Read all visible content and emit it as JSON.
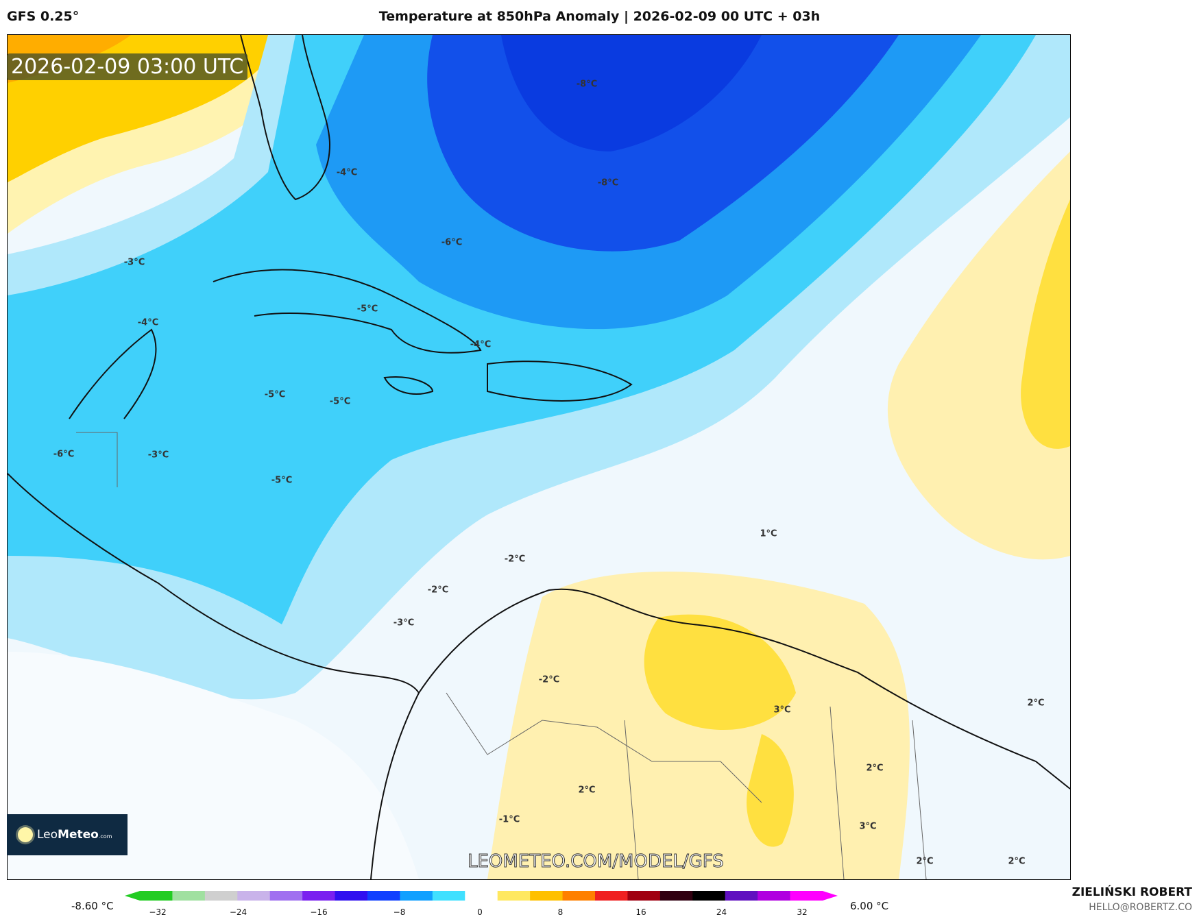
{
  "header": {
    "model": "GFS 0.25°",
    "title": "Temperature at 850hPa Anomaly | 2026-02-09 00 UTC + 03h"
  },
  "map": {
    "valid_time": "2026-02-09 03:00 UTC",
    "contour_labels": [
      "-8°C",
      "-8°C",
      "-4°C",
      "-6°C",
      "-3°C",
      "-4°C",
      "-5°C",
      "-4°C",
      "-5°C",
      "-5°C",
      "-6°C",
      "-3°C",
      "-5°C",
      "-2°C",
      "-2°C",
      "-3°C",
      "-2°C",
      "1°C",
      "3°C",
      "2°C",
      "2°C",
      "2°C",
      "-1°C",
      "3°C",
      "2°C",
      "2°C"
    ],
    "watermark": "LEOMETEO.COM/MODEL/GFS"
  },
  "logo": {
    "name": "LeoMeteo",
    "part1": "Leo",
    "part2": "Meteo",
    "suffix": ".com"
  },
  "colorbar": {
    "min_label": "-8.60 °C",
    "max_label": "6.00 °C",
    "ticks": [
      "−32",
      "−24",
      "−16",
      "−8",
      "0",
      "8",
      "16",
      "24",
      "32"
    ],
    "colors": [
      "#22cc22",
      "#a0e0a0",
      "#cfcfcf",
      "#c9b3ea",
      "#a070f0",
      "#7a20f0",
      "#3010f0",
      "#1040ff",
      "#10a0ff",
      "#40e0ff",
      "#ffffff",
      "#ffe860",
      "#ffc000",
      "#ff8000",
      "#f02020",
      "#a00010",
      "#300010",
      "#000000",
      "#6010c0",
      "#b000e0",
      "#ff00ff"
    ]
  },
  "credits": {
    "author": "ZIELIŃSKI ROBERT",
    "email": "HELLO@ROBERTZ.CO"
  }
}
